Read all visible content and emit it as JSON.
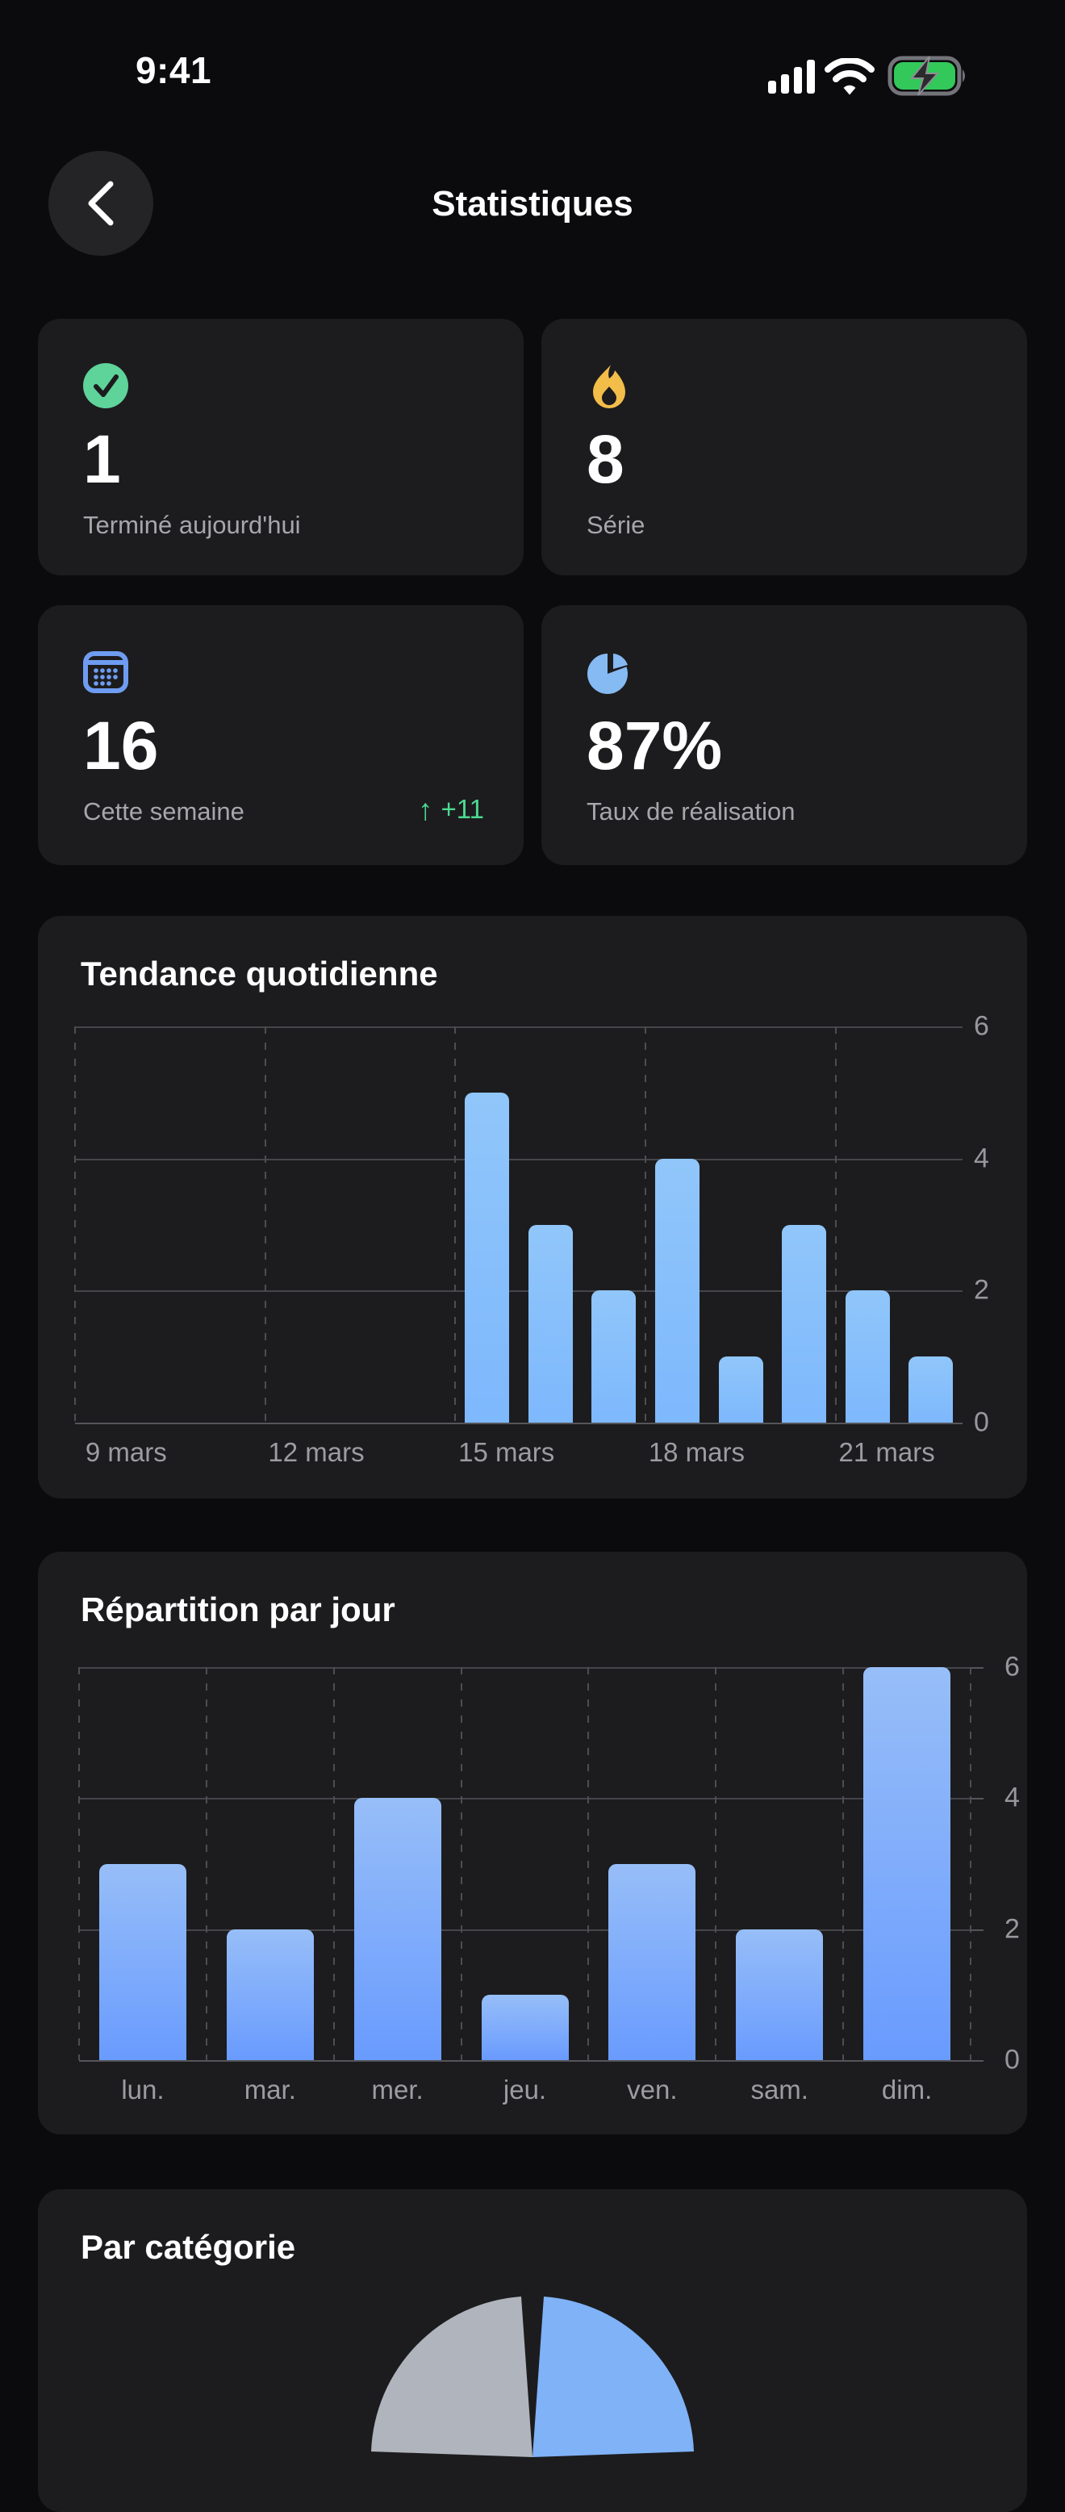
{
  "status_bar": {
    "time": "9:41",
    "icons": {
      "cellular": "cellular-signal-icon",
      "wifi": "wifi-icon",
      "battery": "battery-charging-icon"
    },
    "battery_color": "#32C85A"
  },
  "header": {
    "title": "Statistiques"
  },
  "stats": {
    "cards": [
      {
        "id": "completed-today",
        "icon": "check-circle-icon",
        "icon_color": "#5ED39A",
        "value": "1",
        "label": "Terminé aujourd'hui"
      },
      {
        "id": "streak",
        "icon": "flame-icon",
        "icon_color": "#F3BD4A",
        "value": "8",
        "label": "Série"
      },
      {
        "id": "this-week",
        "icon": "calendar-icon",
        "icon_color": "#6E9CF1",
        "value": "16",
        "label": "Cette semaine",
        "trend": {
          "arrow": "↑",
          "text": "+11",
          "color": "#4CD990"
        }
      },
      {
        "id": "completion-rate",
        "icon": "pie-chart-icon",
        "icon_color": "#85BAF3",
        "value": "87%",
        "label": "Taux de réalisation"
      }
    ]
  },
  "chart_data": [
    {
      "type": "bar",
      "title": "Tendance quotidienne",
      "tick_labels": [
        "9 mars",
        "12 mars",
        "15 mars",
        "18 mars",
        "21 mars"
      ],
      "tick_positions": [
        0,
        3,
        6,
        9,
        12
      ],
      "values": [
        0,
        0,
        0,
        0,
        0,
        0,
        5,
        3,
        2,
        4,
        1,
        3,
        2,
        1
      ],
      "ylim": [
        0,
        6
      ],
      "yticks": [
        6,
        4,
        2,
        0
      ],
      "grid": "horizontal-solid, vertical-dashed",
      "legend": "none",
      "bar_color_top": "#90C6FA",
      "bar_color_bottom": "#7EB8FD"
    },
    {
      "type": "bar",
      "title": "Répartition par jour",
      "categories": [
        "lun.",
        "mar.",
        "mer.",
        "jeu.",
        "ven.",
        "sam.",
        "dim."
      ],
      "values": [
        3,
        2,
        4,
        1,
        3,
        2,
        6
      ],
      "ylim": [
        0,
        6
      ],
      "yticks": [
        6,
        4,
        2,
        0
      ],
      "grid": "horizontal-solid, vertical-dashed",
      "legend": "none",
      "bar_color_top": "#97BEF8",
      "bar_color_bottom": "#699BFE"
    },
    {
      "type": "pie",
      "title": "Par catégorie",
      "segments": [
        {
          "color": "#B0B5BD"
        },
        {
          "color": "#7FB2F7"
        }
      ],
      "visibility": "only top edge of pie visible at screen bottom"
    }
  ],
  "colors": {
    "page_bg": "#0B0B0D",
    "card_bg": "#1C1C1E",
    "label_gray": "#A6A6AB",
    "tick_gray": "#9C9CA1"
  }
}
